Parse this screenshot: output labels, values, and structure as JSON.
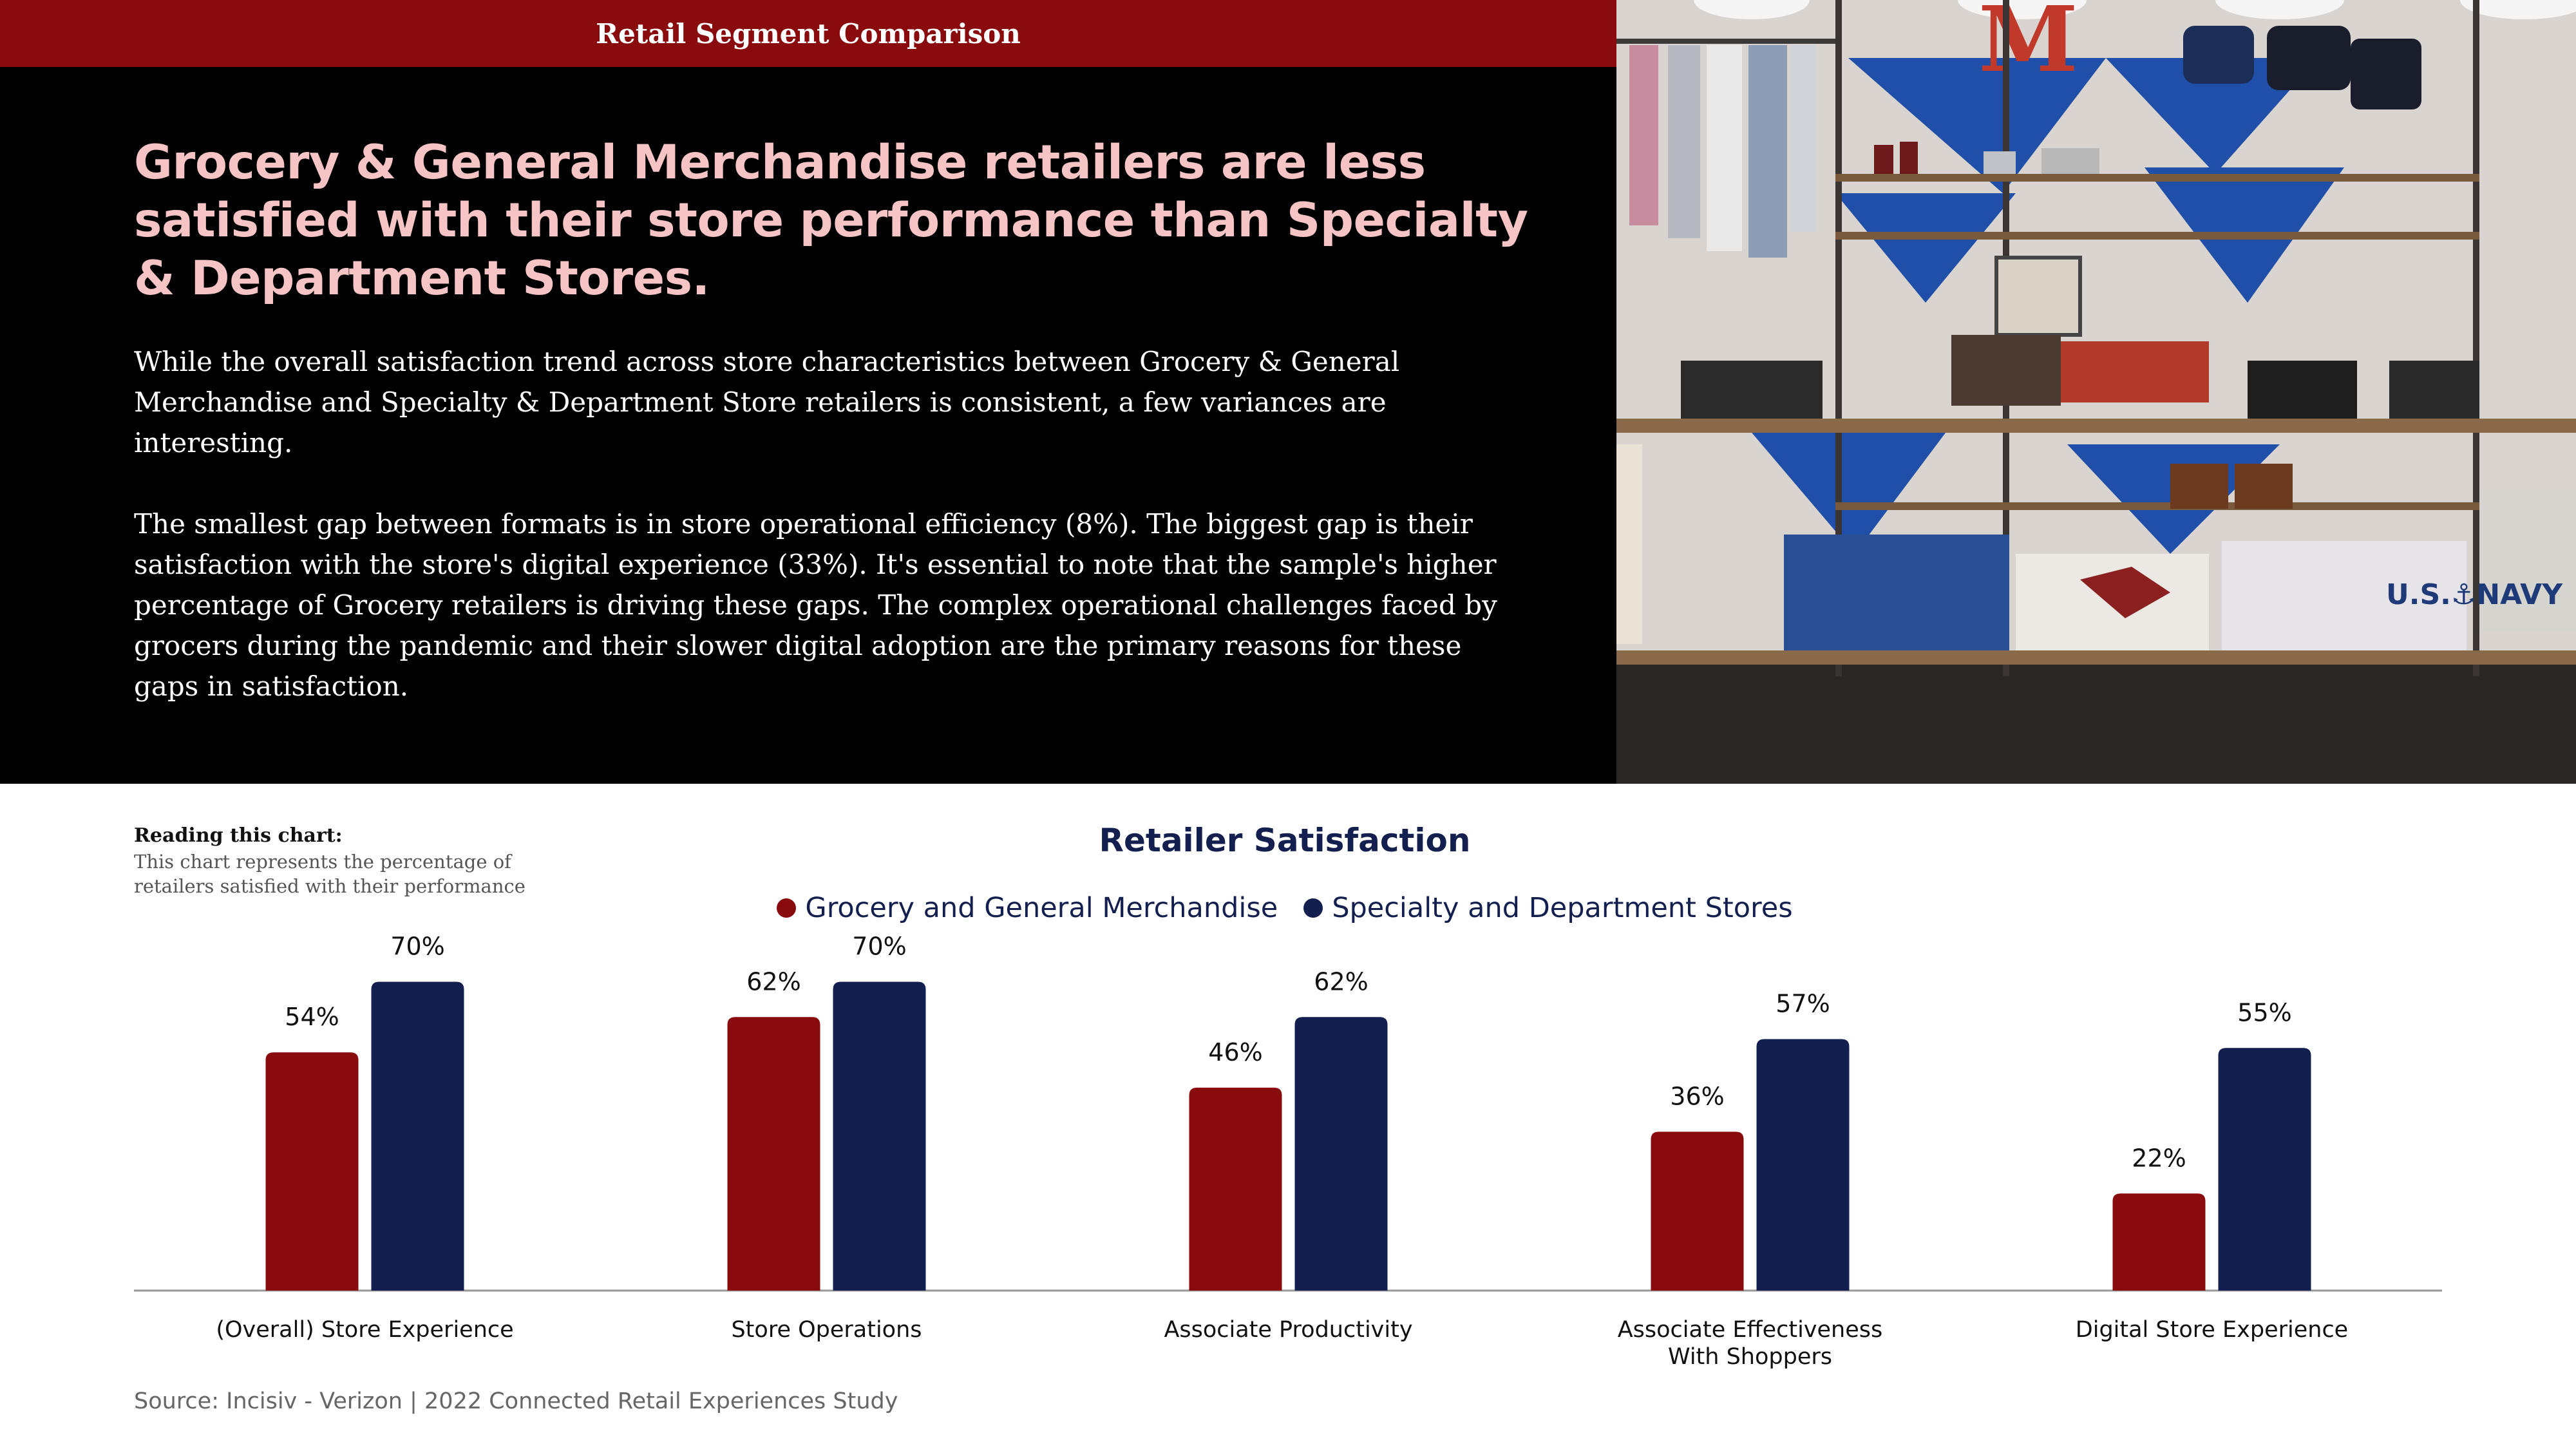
{
  "header": {
    "title": "Retail Segment Comparison",
    "headline": "Grocery & General Merchandise retailers are less satisfied with their store performance than Specialty & Department Stores.",
    "paragraph_1": "While the overall satisfaction trend across store characteristics between Grocery & General Merchandise and Specialty & Department Store retailers is consistent, a few variances are interesting.",
    "paragraph_2": "The smallest gap between formats is in store operational efficiency (8%). The biggest gap is their satisfaction with the store's digital experience (33%). It's essential to note that the sample's higher percentage of Grocery retailers is driving these gaps. The complex operational challenges faced by grocers during the pandemic and their slower digital adoption are the primary reasons for these gaps in satisfaction."
  },
  "photo": {
    "sign_letter": "M",
    "sweatshirt_text": "U.S.⚓NAVY"
  },
  "reading": {
    "heading": "Reading this chart:",
    "text": "This chart represents the percentage of retailers satisfied with their performance"
  },
  "source": "Source: Incisiv - Verizon | 2022 Connected Retail Experiences Study",
  "colors": {
    "grocery": "#8a0b0e",
    "specialty": "#13204f",
    "axis": "#999999"
  },
  "chart_data": {
    "type": "bar",
    "title": "Retailer Satisfaction",
    "categories": [
      "(Overall) Store Experience",
      "Store Operations",
      "Associate Productivity",
      "Associate Effectiveness\nWith Shoppers",
      "Digital Store Experience"
    ],
    "series": [
      {
        "name": "Grocery and General Merchandise",
        "values": [
          54,
          62,
          46,
          36,
          22
        ]
      },
      {
        "name": "Specialty and Department Stores",
        "values": [
          70,
          70,
          62,
          57,
          55
        ]
      }
    ],
    "value_suffix": "%",
    "ylim": [
      0,
      100
    ],
    "grid": false,
    "legend_position": "top-center",
    "xlabel": "",
    "ylabel": ""
  }
}
